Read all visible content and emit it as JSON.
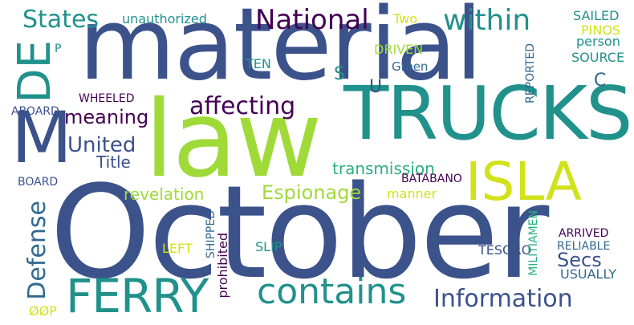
{
  "palette": {
    "blue": "#3b528b",
    "teal": "#21918c",
    "green": "#2ab07f",
    "lime": "#a0da39",
    "purple": "#440154",
    "steel": "#31688e",
    "lightgreen": "#5ec962",
    "yellow": "#d1e21b"
  },
  "words": {
    "october": "October",
    "material": "material",
    "law": "law",
    "trucks": "TRUCKS",
    "isla": "ISLA",
    "ferry": "FERRY",
    "m": "M",
    "de": "DE",
    "national": "National",
    "within": "within",
    "states": "States",
    "contains": "contains",
    "information": "Information",
    "affecting": "affecting",
    "united": "United",
    "meaning": "meaning",
    "title": "Title",
    "defense": "Defense",
    "espionage": "Espionage",
    "revelation": "revelation",
    "transmission": "transmission",
    "secs": "Secs",
    "manner": "manner",
    "batabano": "BATABANO",
    "unauthorized": "unauthorized",
    "two": "Two",
    "sailed": "SAILED",
    "pinos": "PINOS",
    "person": "person",
    "source": "SOURCE",
    "driven": "DRIVEN",
    "green": "Green",
    "ten": "TEN",
    "s": "S",
    "u": "U",
    "c": "C",
    "p": "P",
    "reported": "REPORTED",
    "wheeled": "WHEELED",
    "aboard": "ABOARD",
    "board": "BOARD",
    "left": "LEFT",
    "shipped": "SHIPPED",
    "prohibited": "prohibited",
    "slip": "SLIP",
    "tesoro": "TESORO",
    "militiamen": "MILITIAMEN",
    "arrived": "ARRIVED",
    "reliable": "RELIABLE",
    "usually": "USUALLY",
    "oop": "ØØP"
  }
}
